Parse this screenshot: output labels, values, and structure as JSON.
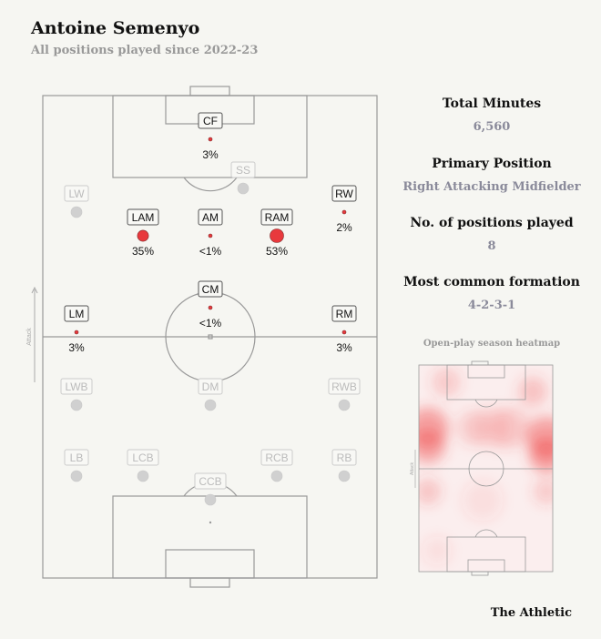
{
  "header": {
    "title": "Antoine Semenyo",
    "subtitle": "All positions played since 2022-23"
  },
  "stats": [
    {
      "label": "Total Minutes",
      "value": "6,560"
    },
    {
      "label": "Primary Position",
      "value": "Right Attacking Midfielder"
    },
    {
      "label": "No. of positions played",
      "value": "8"
    },
    {
      "label": "Most common formation",
      "value": "4-2-3-1"
    }
  ],
  "heatmap": {
    "title": "Open-play season heatmap",
    "direction_label": "Attack"
  },
  "pitch": {
    "direction_label": "Attack"
  },
  "colors": {
    "active": "#e8393d",
    "inactive": "#d0d0d0",
    "pitch_line": "#999999",
    "value_text": "#8a8a9a"
  },
  "chart_data": {
    "type": "scatter",
    "title": "Antoine Semenyo",
    "positions": [
      {
        "pos": "CF",
        "share": "3%",
        "value": 3,
        "played": true
      },
      {
        "pos": "SS",
        "share": "",
        "value": 0,
        "played": false
      },
      {
        "pos": "LW",
        "share": "",
        "value": 0,
        "played": false
      },
      {
        "pos": "RW",
        "share": "2%",
        "value": 2,
        "played": true
      },
      {
        "pos": "LAM",
        "share": "35%",
        "value": 35,
        "played": true
      },
      {
        "pos": "AM",
        "share": "<1%",
        "value": 0.5,
        "played": true
      },
      {
        "pos": "RAM",
        "share": "53%",
        "value": 53,
        "played": true
      },
      {
        "pos": "CM",
        "share": "<1%",
        "value": 0.5,
        "played": true
      },
      {
        "pos": "LM",
        "share": "3%",
        "value": 3,
        "played": true
      },
      {
        "pos": "RM",
        "share": "3%",
        "value": 3,
        "played": true
      },
      {
        "pos": "LWB",
        "share": "",
        "value": 0,
        "played": false
      },
      {
        "pos": "DM",
        "share": "",
        "value": 0,
        "played": false
      },
      {
        "pos": "RWB",
        "share": "",
        "value": 0,
        "played": false
      },
      {
        "pos": "LB",
        "share": "",
        "value": 0,
        "played": false
      },
      {
        "pos": "LCB",
        "share": "",
        "value": 0,
        "played": false
      },
      {
        "pos": "RCB",
        "share": "",
        "value": 0,
        "played": false
      },
      {
        "pos": "RB",
        "share": "",
        "value": 0,
        "played": false
      },
      {
        "pos": "CCB",
        "share": "",
        "value": 0,
        "played": false
      }
    ]
  },
  "brand": "The Athletic"
}
